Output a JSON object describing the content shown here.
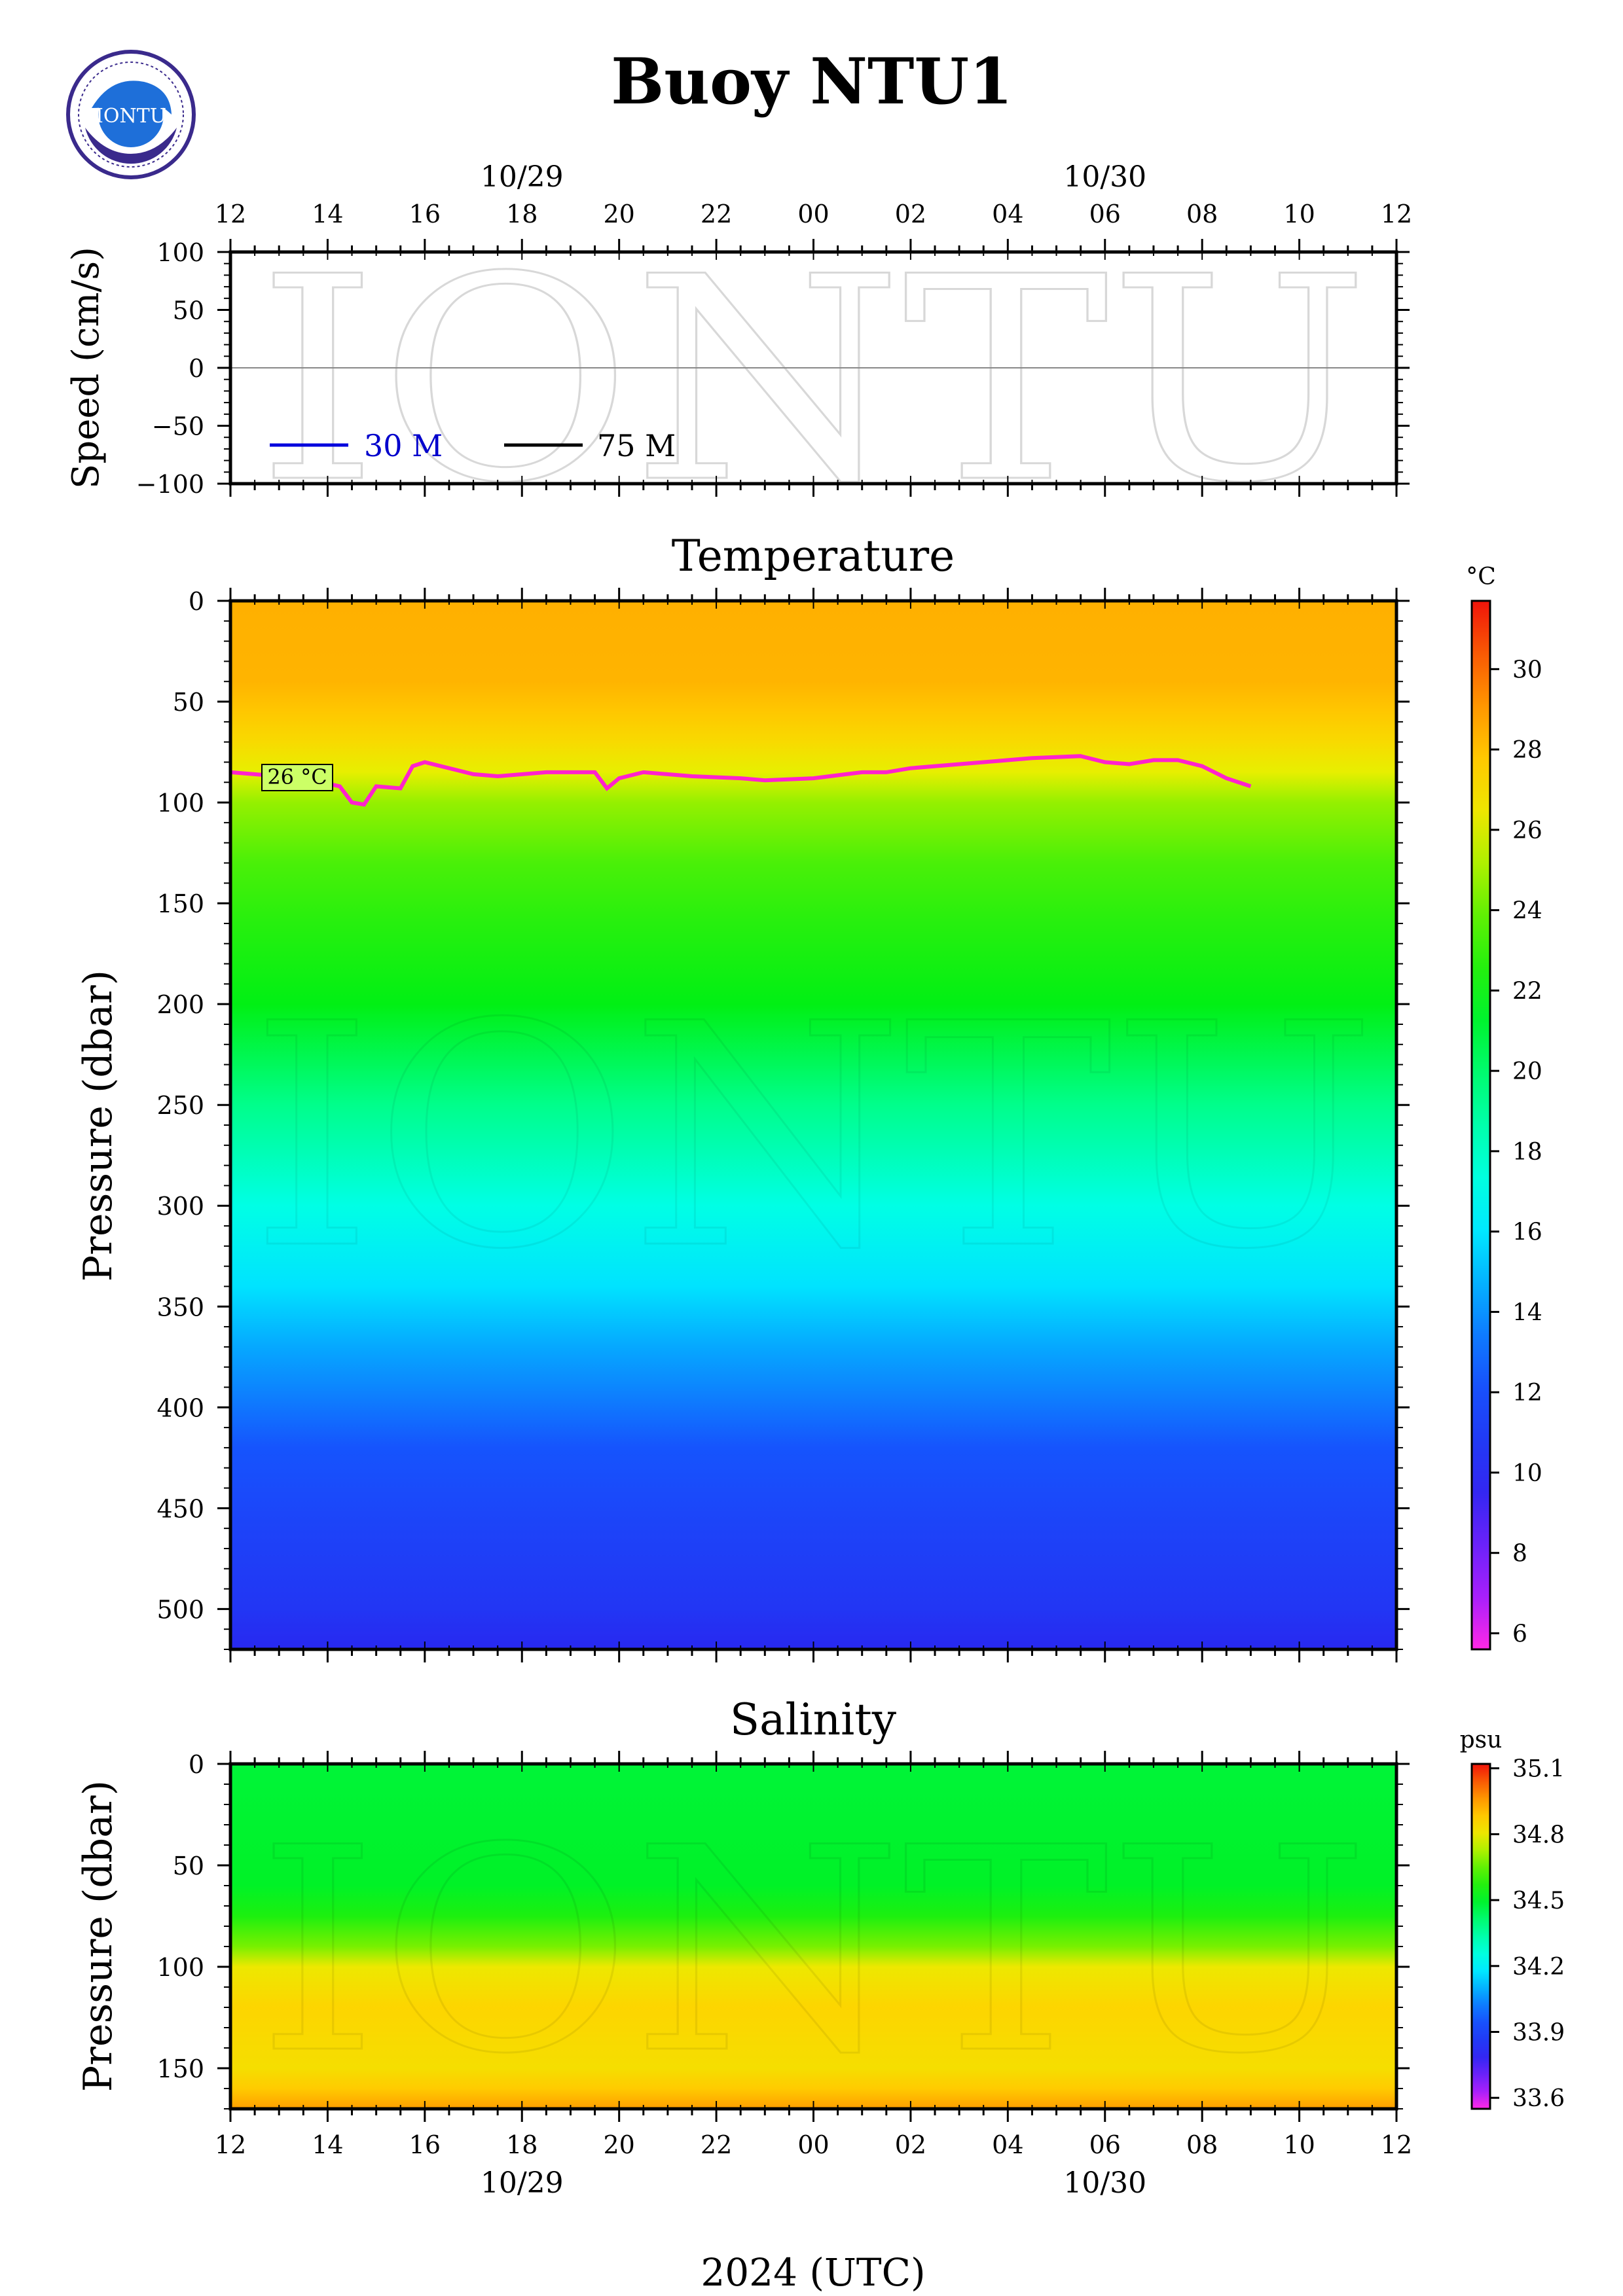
{
  "title": "Buoy NTU1",
  "logo": {
    "text": "IONTU",
    "colors": {
      "ring": "#3a2a8c",
      "wave": "#1e6fd9",
      "inner": "#ffffff"
    }
  },
  "watermark": "IONTU",
  "time_axis": {
    "hour_labels": [
      "12",
      "14",
      "16",
      "18",
      "20",
      "22",
      "00",
      "02",
      "04",
      "06",
      "08",
      "10",
      "12"
    ],
    "date_labels": [
      {
        "label": "10/29",
        "hour_index": 3
      },
      {
        "label": "10/30",
        "hour_index": 9
      }
    ],
    "xlabel": "2024 (UTC)"
  },
  "speed_panel": {
    "ylabel": "Speed (cm/s)",
    "y_ticks": [
      "100",
      "50",
      "0",
      "−50",
      "−100"
    ],
    "ylim": [
      -100,
      100
    ],
    "legend": [
      {
        "name": "30 M",
        "color": "#0000dd",
        "text_color": "#0000cc"
      },
      {
        "name": "75 M",
        "color": "#000000",
        "text_color": "#000000"
      }
    ]
  },
  "temperature_panel": {
    "title": "Temperature",
    "ylabel": "Pressure (dbar)",
    "y_ticks": [
      "0",
      "50",
      "100",
      "150",
      "200",
      "250",
      "300",
      "350",
      "400",
      "450",
      "500"
    ],
    "ylim": [
      0,
      520
    ],
    "colorbar": {
      "unit": "°C",
      "ticks": [
        "30",
        "28",
        "26",
        "24",
        "22",
        "20",
        "18",
        "16",
        "14",
        "12",
        "10",
        "8",
        "6"
      ],
      "range": [
        5.6,
        31.7
      ]
    },
    "contour_label": "26 °C",
    "contour_color": "#ff22cc",
    "isotherm_26C_depth_vs_hour": [
      [
        0,
        85
      ],
      [
        3,
        88
      ],
      [
        4.5,
        92
      ],
      [
        5,
        100
      ],
      [
        5.5,
        101
      ],
      [
        6,
        92
      ],
      [
        7,
        93
      ],
      [
        7.5,
        82
      ],
      [
        8,
        80
      ],
      [
        10,
        86
      ],
      [
        11,
        87
      ],
      [
        13,
        85
      ],
      [
        15,
        85
      ],
      [
        15.5,
        93
      ],
      [
        16,
        88
      ],
      [
        17,
        85
      ],
      [
        19,
        87
      ],
      [
        21,
        88
      ],
      [
        22,
        89
      ],
      [
        24,
        88
      ],
      [
        26,
        85
      ],
      [
        27,
        85
      ],
      [
        28,
        83
      ],
      [
        31,
        80
      ],
      [
        33,
        78
      ],
      [
        35,
        77
      ],
      [
        36,
        80
      ],
      [
        37,
        81
      ],
      [
        38,
        79
      ],
      [
        39,
        79
      ],
      [
        40,
        82
      ],
      [
        41,
        88
      ],
      [
        42,
        92
      ]
    ]
  },
  "salinity_panel": {
    "title": "Salinity",
    "ylabel": "Pressure (dbar)",
    "y_ticks": [
      "0",
      "50",
      "100",
      "150"
    ],
    "ylim": [
      0,
      170
    ],
    "colorbar": {
      "unit": "psu",
      "ticks": [
        "35.1",
        "34.8",
        "34.5",
        "34.2",
        "33.9",
        "33.6"
      ],
      "range": [
        33.55,
        35.12
      ]
    }
  },
  "chart_data": [
    {
      "type": "line",
      "title": "",
      "ylabel": "Speed (cm/s)",
      "xlabel": "2024 (UTC)",
      "x_range_hours": [
        0,
        48
      ],
      "ylim": [
        -100,
        100
      ],
      "series": [
        {
          "name": "30 M",
          "values": []
        },
        {
          "name": "75 M",
          "values": []
        }
      ]
    },
    {
      "type": "heatmap",
      "title": "Temperature",
      "ylabel": "Pressure (dbar)",
      "unit": "°C",
      "x_range_hours": [
        0,
        48
      ],
      "ylim": [
        0,
        520
      ],
      "temperature_profile_depth_value": [
        [
          0,
          28.4
        ],
        [
          40,
          28.3
        ],
        [
          55,
          27.8
        ],
        [
          70,
          27.1
        ],
        [
          85,
          26.0
        ],
        [
          100,
          24.8
        ],
        [
          130,
          23.4
        ],
        [
          160,
          22.6
        ],
        [
          200,
          21.8
        ],
        [
          250,
          19.4
        ],
        [
          300,
          17.2
        ],
        [
          340,
          15.9
        ],
        [
          370,
          14.5
        ],
        [
          420,
          12.3
        ],
        [
          460,
          11.3
        ],
        [
          500,
          10.6
        ],
        [
          520,
          9.8
        ]
      ]
    },
    {
      "type": "heatmap",
      "title": "Salinity",
      "ylabel": "Pressure (dbar)",
      "unit": "psu",
      "x_range_hours": [
        0,
        48
      ],
      "ylim": [
        0,
        170
      ],
      "salinity_profile_depth_value": [
        [
          0,
          34.48
        ],
        [
          60,
          34.5
        ],
        [
          75,
          34.56
        ],
        [
          90,
          34.68
        ],
        [
          100,
          34.8
        ],
        [
          120,
          34.86
        ],
        [
          150,
          34.83
        ],
        [
          160,
          34.88
        ],
        [
          170,
          34.95
        ]
      ]
    }
  ]
}
